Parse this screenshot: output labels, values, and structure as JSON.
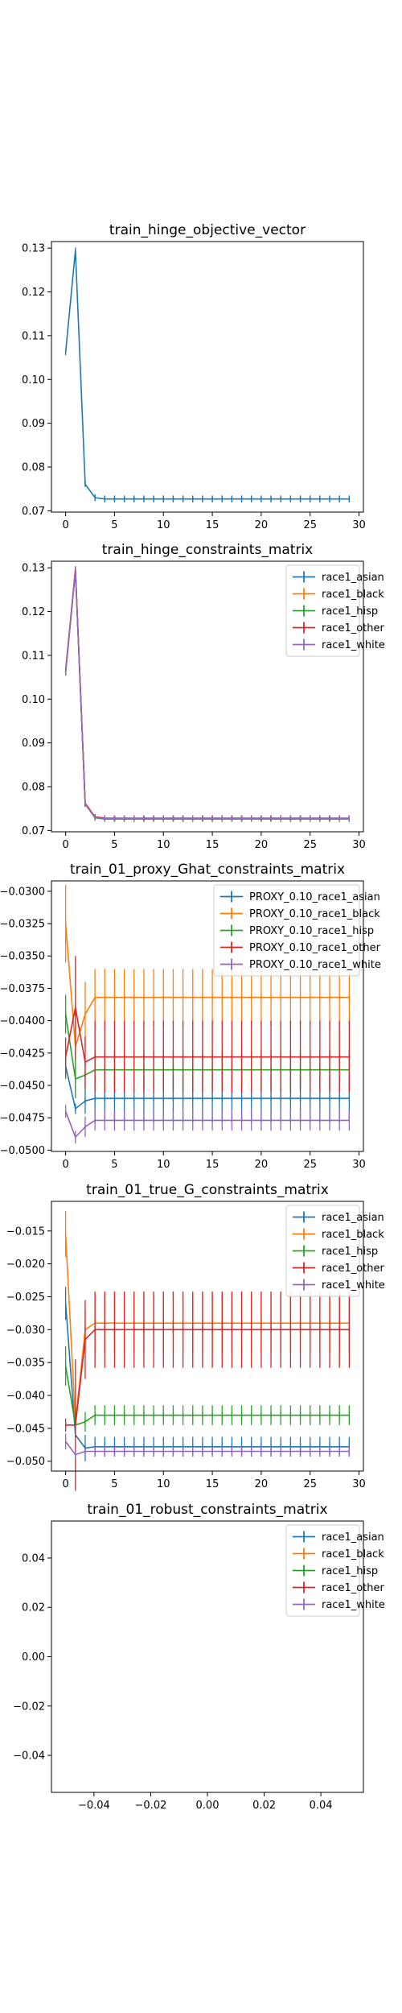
{
  "palette": {
    "race1_asian": "#1f77b4",
    "race1_black": "#ff7f0e",
    "race1_hisp": "#2ca02c",
    "race1_other": "#d62728",
    "race1_white": "#9467bd"
  },
  "chart_data": [
    {
      "type": "line",
      "title": "train_hinge_objective_vector",
      "xlim": [
        -1.45,
        30.45
      ],
      "ylim": [
        0.0697,
        0.1315
      ],
      "xticks": [
        0,
        5,
        10,
        15,
        20,
        25,
        30
      ],
      "yticks": [
        0.07,
        0.08,
        0.09,
        0.1,
        0.11,
        0.12,
        0.13
      ],
      "ytick_labels": [
        "0.07",
        "0.08",
        "0.09",
        "0.10",
        "0.11",
        "0.12",
        "0.13"
      ],
      "xtick_labels": [
        "0",
        "5",
        "10",
        "15",
        "20",
        "25",
        "30"
      ],
      "legend": null,
      "series": [
        {
          "key": "race1_asian",
          "start": [
            0.1062,
            0.1295,
            0.0761,
            0.073
          ],
          "final": 0.0727,
          "err": [
            0.0,
            0.0,
            0.0005,
            0.0008
          ],
          "err_final": 0.0008
        }
      ]
    },
    {
      "type": "line",
      "title": "train_hinge_constraints_matrix",
      "xlim": [
        -1.45,
        30.45
      ],
      "ylim": [
        0.0697,
        0.1315
      ],
      "xticks": [
        0,
        5,
        10,
        15,
        20,
        25,
        30
      ],
      "yticks": [
        0.07,
        0.08,
        0.09,
        0.1,
        0.11,
        0.12,
        0.13
      ],
      "ytick_labels": [
        "0.07",
        "0.08",
        "0.09",
        "0.10",
        "0.11",
        "0.12",
        "0.13"
      ],
      "xtick_labels": [
        "0",
        "5",
        "10",
        "15",
        "20",
        "25",
        "30"
      ],
      "legend": "upper right",
      "series": [
        {
          "name": "race1_asian",
          "key": "race1_asian",
          "start": [
            0.1062,
            0.1293,
            0.0761,
            0.073
          ],
          "final": 0.0727,
          "err": [
            0.0,
            0.0,
            0.0005,
            0.0006
          ],
          "err_final": 0.0006
        },
        {
          "name": "race1_black",
          "key": "race1_black",
          "start": [
            0.1065,
            0.1296,
            0.0763,
            0.0731
          ],
          "final": 0.0728,
          "err": [
            0.0,
            0.0,
            0.0005,
            0.0006
          ],
          "err_final": 0.0006
        },
        {
          "name": "race1_hisp",
          "key": "race1_hisp",
          "start": [
            0.106,
            0.1294,
            0.076,
            0.0729
          ],
          "final": 0.0726,
          "err": [
            0.0,
            0.0,
            0.0005,
            0.0006
          ],
          "err_final": 0.0006
        },
        {
          "name": "race1_other",
          "key": "race1_other",
          "start": [
            0.1066,
            0.1297,
            0.0762,
            0.0731
          ],
          "final": 0.0728,
          "err": [
            0.0,
            0.0,
            0.0005,
            0.0006
          ],
          "err_final": 0.0006
        },
        {
          "name": "race1_white",
          "key": "race1_white",
          "start": [
            0.1062,
            0.1295,
            0.0761,
            0.073
          ],
          "final": 0.0727,
          "err": [
            0.0,
            0.0,
            0.0005,
            0.0006
          ],
          "err_final": 0.0006
        }
      ]
    },
    {
      "type": "line",
      "title": "train_01_proxy_Ghat_constraints_matrix",
      "xlim": [
        -1.45,
        30.45
      ],
      "ylim": [
        -0.0501,
        -0.0292
      ],
      "xticks": [
        0,
        5,
        10,
        15,
        20,
        25,
        30
      ],
      "yticks": [
        -0.03,
        -0.0325,
        -0.035,
        -0.0375,
        -0.04,
        -0.0425,
        -0.045,
        -0.0475,
        -0.05
      ],
      "ytick_labels": [
        "−0.0300",
        "−0.0325",
        "−0.0350",
        "−0.0375",
        "−0.0400",
        "−0.0425",
        "−0.0450",
        "−0.0475",
        "−0.0500"
      ],
      "xtick_labels": [
        "0",
        "5",
        "10",
        "15",
        "20",
        "25",
        "30"
      ],
      "legend": "upper right",
      "series": [
        {
          "name": "PROXY_0.10_race1_asian",
          "key": "race1_asian",
          "start": [
            -0.0435,
            -0.0468,
            -0.0462,
            -0.046
          ],
          "final": -0.046,
          "err": [
            0.001,
            0.0004,
            0.001,
            0.0018
          ],
          "err_final": 0.0018
        },
        {
          "name": "PROXY_0.10_race1_black",
          "key": "race1_black",
          "start": [
            -0.0325,
            -0.042,
            -0.0395,
            -0.0382
          ],
          "final": -0.0382,
          "err": [
            0.003,
            0.0035,
            0.0025,
            0.0022
          ],
          "err_final": 0.0022
        },
        {
          "name": "PROXY_0.10_race1_hisp",
          "key": "race1_hisp",
          "start": [
            -0.0395,
            -0.0445,
            -0.0442,
            -0.0438
          ],
          "final": -0.0438,
          "err": [
            0.0015,
            0.0015,
            0.0012,
            0.0015
          ],
          "err_final": 0.0015
        },
        {
          "name": "PROXY_0.10_race1_other",
          "key": "race1_other",
          "start": [
            -0.0428,
            -0.039,
            -0.0432,
            -0.0428
          ],
          "final": -0.0428,
          "err": [
            0.0015,
            0.004,
            0.002,
            0.0028
          ],
          "err_final": 0.0028
        },
        {
          "name": "PROXY_0.10_race1_white",
          "key": "race1_white",
          "start": [
            -0.047,
            -0.049,
            -0.0482,
            -0.0477
          ],
          "final": -0.0477,
          "err": [
            0.0005,
            0.0005,
            0.0008,
            0.0008
          ],
          "err_final": 0.0008
        }
      ]
    },
    {
      "type": "line",
      "title": "train_01_true_G_constraints_matrix",
      "xlim": [
        -1.45,
        30.45
      ],
      "ylim": [
        -0.0515,
        -0.0105
      ],
      "xticks": [
        0,
        5,
        10,
        15,
        20,
        25,
        30
      ],
      "yticks": [
        -0.015,
        -0.02,
        -0.025,
        -0.03,
        -0.035,
        -0.04,
        -0.045,
        -0.05
      ],
      "ytick_labels": [
        "−0.015",
        "−0.020",
        "−0.025",
        "−0.030",
        "−0.035",
        "−0.040",
        "−0.045",
        "−0.050"
      ],
      "xtick_labels": [
        "0",
        "5",
        "10",
        "15",
        "20",
        "25",
        "30"
      ],
      "legend": "upper right",
      "series": [
        {
          "name": "race1_asian",
          "key": "race1_asian",
          "start": [
            -0.026,
            -0.046,
            -0.048,
            -0.0478
          ],
          "final": -0.0478,
          "err": [
            0.0025,
            0.0005,
            0.002,
            0.0015
          ],
          "err_final": 0.0015
        },
        {
          "name": "race1_black",
          "key": "race1_black",
          "start": [
            -0.0155,
            -0.044,
            -0.03,
            -0.029
          ],
          "final": -0.029,
          "err": [
            0.0035,
            0.001,
            0.003,
            0.0045
          ],
          "err_final": 0.0045
        },
        {
          "name": "race1_hisp",
          "key": "race1_hisp",
          "start": [
            -0.0355,
            -0.0445,
            -0.044,
            -0.043
          ],
          "final": -0.043,
          "err": [
            0.003,
            0.001,
            0.0015,
            0.0015
          ],
          "err_final": 0.0015
        },
        {
          "name": "race1_other",
          "key": "race1_other",
          "start": [
            -0.0445,
            -0.0445,
            -0.0315,
            -0.03
          ],
          "final": -0.03,
          "err": [
            0.001,
            0.01,
            0.006,
            0.0058
          ],
          "err_final": 0.0058
        },
        {
          "name": "race1_white",
          "key": "race1_white",
          "start": [
            -0.047,
            -0.049,
            -0.0485,
            -0.0485
          ],
          "final": -0.0485,
          "err": [
            0.0012,
            0.0005,
            0.0005,
            0.0008
          ],
          "err_final": 0.0008
        }
      ]
    },
    {
      "type": "line",
      "title": "train_01_robust_constraints_matrix",
      "xlim": [
        -0.055,
        0.055
      ],
      "ylim": [
        -0.055,
        0.055
      ],
      "xticks": [
        -0.04,
        -0.02,
        0.0,
        0.02,
        0.04
      ],
      "yticks": [
        0.04,
        0.02,
        0.0,
        -0.02,
        -0.04
      ],
      "xtick_labels": [
        "−0.04",
        "−0.02",
        "0.00",
        "0.02",
        "0.04"
      ],
      "ytick_labels": [
        "0.04",
        "0.02",
        "0.00",
        "−0.02",
        "−0.04"
      ],
      "legend": "upper right",
      "series": [
        {
          "name": "race1_asian",
          "key": "race1_asian",
          "empty": true
        },
        {
          "name": "race1_black",
          "key": "race1_black",
          "empty": true
        },
        {
          "name": "race1_hisp",
          "key": "race1_hisp",
          "empty": true
        },
        {
          "name": "race1_other",
          "key": "race1_other",
          "empty": true
        },
        {
          "name": "race1_white",
          "key": "race1_white",
          "empty": true
        }
      ]
    }
  ]
}
